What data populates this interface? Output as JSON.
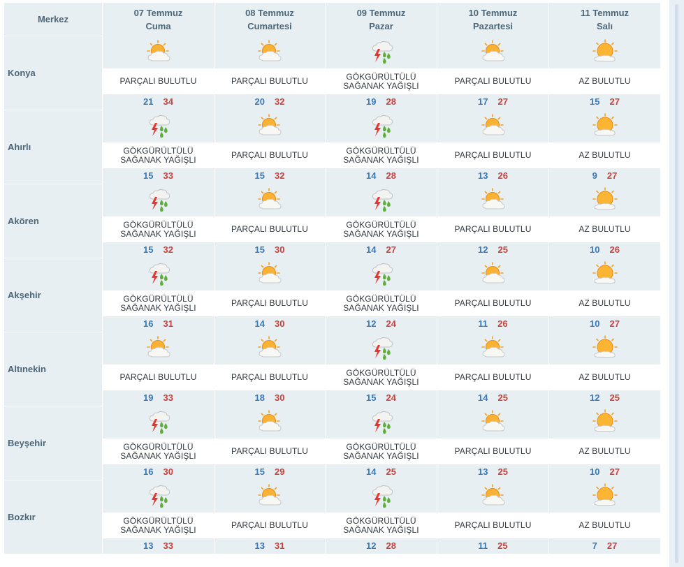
{
  "header": {
    "center_label": "Merkez",
    "days": [
      {
        "date": "07 Temmuz",
        "weekday": "Cuma"
      },
      {
        "date": "08 Temmuz",
        "weekday": "Cumartesi"
      },
      {
        "date": "09 Temmuz",
        "weekday": "Pazar"
      },
      {
        "date": "10 Temmuz",
        "weekday": "Pazartesi"
      },
      {
        "date": "11 Temmuz",
        "weekday": "Salı"
      }
    ]
  },
  "condition_icons": {
    "partly_cloudy": "partly-cloudy-icon",
    "mostly_sunny": "mostly-sunny-icon",
    "thunderstorm": "thunderstorm-rain-icon"
  },
  "colors": {
    "min_temp": "#3a79b8",
    "max_temp": "#c8423e",
    "header_bg": "#e8eff3",
    "header_text": "#4d6677"
  },
  "cities": [
    {
      "name": "Konya",
      "forecast": [
        {
          "icon": "partly_cloudy",
          "condition": [
            "PARÇALI BULUTLU"
          ],
          "min": "21",
          "max": "34"
        },
        {
          "icon": "partly_cloudy",
          "condition": [
            "PARÇALI BULUTLU"
          ],
          "min": "20",
          "max": "32"
        },
        {
          "icon": "thunderstorm",
          "condition": [
            "GÖKGÜRÜLTÜLÜ",
            "SAĞANAK YAĞIŞLI"
          ],
          "min": "19",
          "max": "28"
        },
        {
          "icon": "partly_cloudy",
          "condition": [
            "PARÇALI BULUTLU"
          ],
          "min": "17",
          "max": "27"
        },
        {
          "icon": "mostly_sunny",
          "condition": [
            "AZ BULUTLU"
          ],
          "min": "15",
          "max": "27"
        }
      ]
    },
    {
      "name": "Ahırlı",
      "forecast": [
        {
          "icon": "thunderstorm",
          "condition": [
            "GÖKGÜRÜLTÜLÜ",
            "SAĞANAK YAĞIŞLI"
          ],
          "min": "15",
          "max": "33"
        },
        {
          "icon": "partly_cloudy",
          "condition": [
            "PARÇALI BULUTLU"
          ],
          "min": "15",
          "max": "32"
        },
        {
          "icon": "thunderstorm",
          "condition": [
            "GÖKGÜRÜLTÜLÜ",
            "SAĞANAK YAĞIŞLI"
          ],
          "min": "14",
          "max": "28"
        },
        {
          "icon": "partly_cloudy",
          "condition": [
            "PARÇALI BULUTLU"
          ],
          "min": "13",
          "max": "26"
        },
        {
          "icon": "mostly_sunny",
          "condition": [
            "AZ BULUTLU"
          ],
          "min": "9",
          "max": "27"
        }
      ]
    },
    {
      "name": "Akören",
      "forecast": [
        {
          "icon": "thunderstorm",
          "condition": [
            "GÖKGÜRÜLTÜLÜ",
            "SAĞANAK YAĞIŞLI"
          ],
          "min": "15",
          "max": "32"
        },
        {
          "icon": "partly_cloudy",
          "condition": [
            "PARÇALI BULUTLU"
          ],
          "min": "15",
          "max": "30"
        },
        {
          "icon": "thunderstorm",
          "condition": [
            "GÖKGÜRÜLTÜLÜ",
            "SAĞANAK YAĞIŞLI"
          ],
          "min": "14",
          "max": "27"
        },
        {
          "icon": "partly_cloudy",
          "condition": [
            "PARÇALI BULUTLU"
          ],
          "min": "12",
          "max": "25"
        },
        {
          "icon": "mostly_sunny",
          "condition": [
            "AZ BULUTLU"
          ],
          "min": "10",
          "max": "26"
        }
      ]
    },
    {
      "name": "Akşehir",
      "forecast": [
        {
          "icon": "thunderstorm",
          "condition": [
            "GÖKGÜRÜLTÜLÜ",
            "SAĞANAK YAĞIŞLI"
          ],
          "min": "16",
          "max": "31"
        },
        {
          "icon": "partly_cloudy",
          "condition": [
            "PARÇALI BULUTLU"
          ],
          "min": "14",
          "max": "30"
        },
        {
          "icon": "thunderstorm",
          "condition": [
            "GÖKGÜRÜLTÜLÜ",
            "SAĞANAK YAĞIŞLI"
          ],
          "min": "12",
          "max": "24"
        },
        {
          "icon": "partly_cloudy",
          "condition": [
            "PARÇALI BULUTLU"
          ],
          "min": "11",
          "max": "26"
        },
        {
          "icon": "mostly_sunny",
          "condition": [
            "AZ BULUTLU"
          ],
          "min": "10",
          "max": "27"
        }
      ]
    },
    {
      "name": "Altınekin",
      "forecast": [
        {
          "icon": "partly_cloudy",
          "condition": [
            "PARÇALI BULUTLU"
          ],
          "min": "19",
          "max": "33"
        },
        {
          "icon": "partly_cloudy",
          "condition": [
            "PARÇALI BULUTLU"
          ],
          "min": "18",
          "max": "30"
        },
        {
          "icon": "thunderstorm",
          "condition": [
            "GÖKGÜRÜLTÜLÜ",
            "SAĞANAK YAĞIŞLI"
          ],
          "min": "15",
          "max": "24"
        },
        {
          "icon": "partly_cloudy",
          "condition": [
            "PARÇALI BULUTLU"
          ],
          "min": "14",
          "max": "25"
        },
        {
          "icon": "mostly_sunny",
          "condition": [
            "AZ BULUTLU"
          ],
          "min": "12",
          "max": "25"
        }
      ]
    },
    {
      "name": "Beyşehir",
      "forecast": [
        {
          "icon": "thunderstorm",
          "condition": [
            "GÖKGÜRÜLTÜLÜ",
            "SAĞANAK YAĞIŞLI"
          ],
          "min": "16",
          "max": "30"
        },
        {
          "icon": "partly_cloudy",
          "condition": [
            "PARÇALI BULUTLU"
          ],
          "min": "15",
          "max": "29"
        },
        {
          "icon": "thunderstorm",
          "condition": [
            "GÖKGÜRÜLTÜLÜ",
            "SAĞANAK YAĞIŞLI"
          ],
          "min": "14",
          "max": "25"
        },
        {
          "icon": "partly_cloudy",
          "condition": [
            "PARÇALI BULUTLU"
          ],
          "min": "13",
          "max": "25"
        },
        {
          "icon": "mostly_sunny",
          "condition": [
            "AZ BULUTLU"
          ],
          "min": "10",
          "max": "27"
        }
      ]
    },
    {
      "name": "Bozkır",
      "forecast": [
        {
          "icon": "thunderstorm",
          "condition": [
            "GÖKGÜRÜLTÜLÜ",
            "SAĞANAK YAĞIŞLI"
          ],
          "min": "13",
          "max": "33"
        },
        {
          "icon": "partly_cloudy",
          "condition": [
            "PARÇALI BULUTLU"
          ],
          "min": "13",
          "max": "31"
        },
        {
          "icon": "thunderstorm",
          "condition": [
            "GÖKGÜRÜLTÜLÜ",
            "SAĞANAK YAĞIŞLI"
          ],
          "min": "12",
          "max": "28"
        },
        {
          "icon": "partly_cloudy",
          "condition": [
            "PARÇALI BULUTLU"
          ],
          "min": "11",
          "max": "25"
        },
        {
          "icon": "mostly_sunny",
          "condition": [
            "AZ BULUTLU"
          ],
          "min": "7",
          "max": "27"
        }
      ]
    }
  ]
}
